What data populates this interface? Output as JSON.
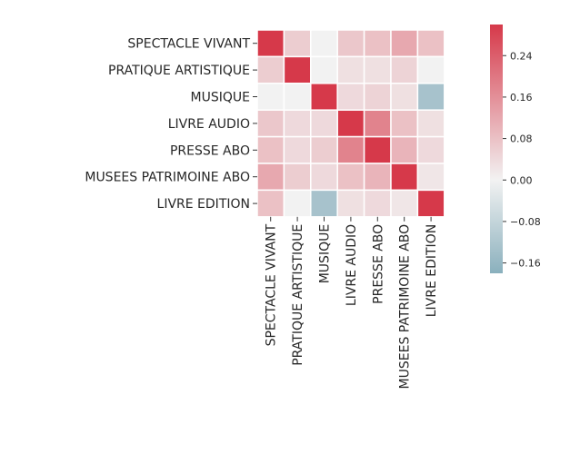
{
  "chart_data": {
    "type": "heatmap",
    "row_labels": [
      "SPECTACLE VIVANT",
      "PRATIQUE ARTISTIQUE",
      "MUSIQUE",
      "LIVRE AUDIO",
      "PRESSE ABO",
      "MUSEES PATRIMOINE ABO",
      "LIVRE EDITION"
    ],
    "col_labels": [
      "SPECTACLE VIVANT",
      "PRATIQUE ARTISTIQUE",
      "MUSIQUE",
      "LIVRE AUDIO",
      "PRESSE ABO",
      "MUSEES PATRIMOINE ABO",
      "LIVRE EDITION"
    ],
    "values": [
      [
        0.3,
        0.06,
        0.0,
        0.07,
        0.08,
        0.12,
        0.08
      ],
      [
        0.06,
        0.3,
        0.0,
        0.03,
        0.03,
        0.05,
        0.0
      ],
      [
        0.0,
        0.0,
        0.3,
        0.04,
        0.05,
        0.03,
        -0.13
      ],
      [
        0.07,
        0.04,
        0.04,
        0.3,
        0.18,
        0.08,
        0.03
      ],
      [
        0.08,
        0.04,
        0.06,
        0.18,
        0.3,
        0.1,
        0.04
      ],
      [
        0.12,
        0.06,
        0.04,
        0.08,
        0.1,
        0.3,
        0.02
      ],
      [
        0.08,
        0.0,
        -0.13,
        0.03,
        0.04,
        0.02,
        0.3
      ]
    ],
    "colorbar": {
      "ticks": [
        0.24,
        0.16,
        0.08,
        0.0,
        -0.08,
        -0.16
      ],
      "tick_labels": [
        "0.24",
        "0.16",
        "0.08",
        "0.00",
        "−0.08",
        "−0.16"
      ],
      "vmin": -0.18,
      "vmax": 0.3,
      "colors": {
        "negative": "#8ab0bd",
        "center": "#f2f2f2",
        "positive": "#d6394a"
      }
    }
  }
}
